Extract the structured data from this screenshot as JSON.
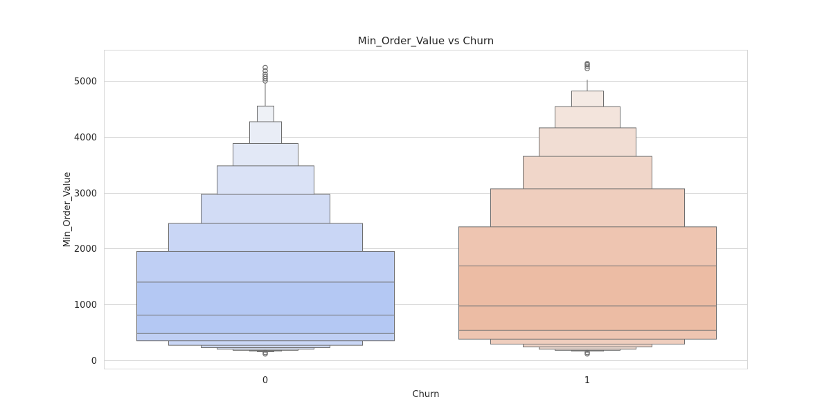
{
  "chart_data": {
    "type": "boxen",
    "title": "Min_Order_Value vs Churn",
    "xlabel": "Churn",
    "ylabel": "Min_Order_Value",
    "categories": [
      "0",
      "1"
    ],
    "ylim": [
      -150,
      5550
    ],
    "yticks": [
      0,
      1000,
      2000,
      3000,
      4000,
      5000
    ],
    "grid": true,
    "series": [
      {
        "category": "0",
        "median": 810,
        "levels": [
          {
            "low": 480,
            "high": 1400,
            "color": "#b4c8f3"
          },
          {
            "low": 350,
            "high": 1950,
            "color": "#bfcff4"
          },
          {
            "low": 270,
            "high": 2450,
            "color": "#c9d6f5"
          },
          {
            "low": 230,
            "high": 2970,
            "color": "#d2dcf5"
          },
          {
            "low": 200,
            "high": 3480,
            "color": "#dae2f6"
          },
          {
            "low": 180,
            "high": 3880,
            "color": "#e2e8f6"
          },
          {
            "low": 165,
            "high": 4270,
            "color": "#e9edf6"
          },
          {
            "low": 155,
            "high": 4550,
            "color": "#eef1f6"
          }
        ],
        "whisker": [
          130,
          4960
        ],
        "outliers": [
          5000,
          5040,
          5080,
          5120,
          5180,
          5240,
          115,
          140
        ]
      },
      {
        "category": "1",
        "median": 975,
        "levels": [
          {
            "low": 540,
            "high": 1690,
            "color": "#ecbca4"
          },
          {
            "low": 380,
            "high": 2390,
            "color": "#eec5b1"
          },
          {
            "low": 290,
            "high": 3070,
            "color": "#efcebe"
          },
          {
            "low": 240,
            "high": 3650,
            "color": "#f0d6c9"
          },
          {
            "low": 200,
            "high": 4160,
            "color": "#f1ddd3"
          },
          {
            "low": 180,
            "high": 4540,
            "color": "#f3e4dc"
          },
          {
            "low": 165,
            "high": 4820,
            "color": "#f4eae4"
          }
        ],
        "whisker": [
          130,
          5020
        ],
        "outliers": [
          5220,
          5260,
          5290,
          5310,
          115,
          140
        ]
      }
    ]
  }
}
